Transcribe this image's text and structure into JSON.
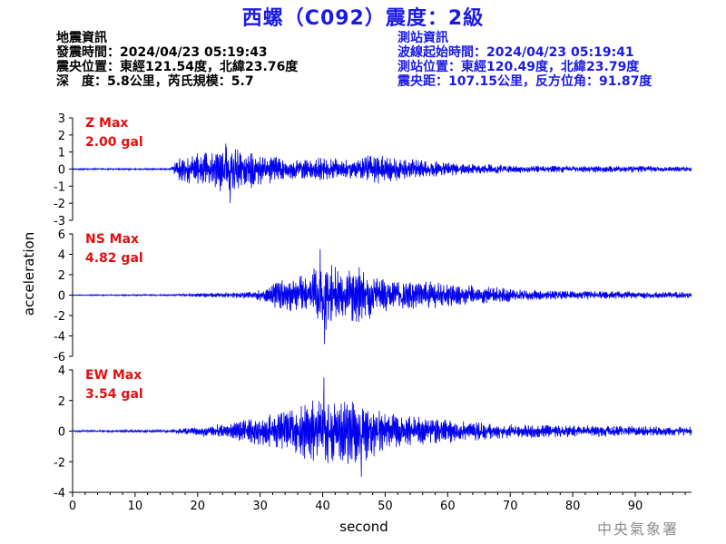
{
  "header": {
    "title": "西螺（C092）震度：2級",
    "left_lines": [
      "地震資訊",
      "發震時間：2024/04/23 05:19:43",
      "震央位置：東經121.54度，北緯23.76度",
      "深　度：5.8公里，芮氏規模：5.7"
    ],
    "right_lines": [
      "測站資訊",
      "波線起始時間：2024/04/23 05:19:41",
      "測站位置：東經120.49度，北緯23.79度",
      "震央距：107.15公里，反方位角：91.87度"
    ]
  },
  "footer": {
    "agency": "中央氣象署"
  },
  "colors": {
    "title": "#1a1ae6",
    "trace": "#0000ee",
    "max_label": "#e01010",
    "station_info": "#1a1ae6"
  },
  "chart_data": {
    "type": "line",
    "xlabel": "second",
    "ylabel": "acceleration",
    "xlim": [
      0,
      99
    ],
    "xticks": [
      0,
      10,
      20,
      30,
      40,
      50,
      60,
      70,
      80,
      90
    ],
    "panels": [
      {
        "name": "Z",
        "max_label": "Z Max",
        "max_value": "2.00 gal",
        "ylim": [
          -3,
          3
        ],
        "yticks": [
          -3,
          -2,
          -1,
          0,
          1,
          2,
          3
        ],
        "envelope": [
          [
            0,
            0.05
          ],
          [
            15.5,
            0.05
          ],
          [
            16.5,
            0.6
          ],
          [
            19,
            0.9
          ],
          [
            22,
            1.1
          ],
          [
            25,
            1.5
          ],
          [
            27,
            1.3
          ],
          [
            30,
            1.0
          ],
          [
            35,
            0.6
          ],
          [
            40,
            0.7
          ],
          [
            45,
            0.6
          ],
          [
            48,
            0.9
          ],
          [
            52,
            0.7
          ],
          [
            58,
            0.5
          ],
          [
            62,
            0.35
          ],
          [
            70,
            0.25
          ],
          [
            80,
            0.2
          ],
          [
            90,
            0.2
          ],
          [
            99,
            0.15
          ]
        ],
        "peaks": [
          [
            24.5,
            1.5
          ],
          [
            25.2,
            -2.0
          ]
        ]
      },
      {
        "name": "NS",
        "max_label": "NS Max",
        "max_value": "4.82 gal",
        "ylim": [
          -6,
          6
        ],
        "yticks": [
          -6,
          -4,
          -2,
          0,
          2,
          4,
          6
        ],
        "envelope": [
          [
            0,
            0.06
          ],
          [
            16,
            0.08
          ],
          [
            20,
            0.2
          ],
          [
            26,
            0.3
          ],
          [
            30,
            0.6
          ],
          [
            33,
            1.8
          ],
          [
            37,
            2.0
          ],
          [
            39,
            3.0
          ],
          [
            40.5,
            3.8
          ],
          [
            43,
            2.2
          ],
          [
            46,
            3.0
          ],
          [
            49,
            1.8
          ],
          [
            55,
            1.5
          ],
          [
            60,
            1.2
          ],
          [
            68,
            0.8
          ],
          [
            75,
            0.5
          ],
          [
            85,
            0.4
          ],
          [
            99,
            0.3
          ]
        ],
        "peaks": [
          [
            39.6,
            4.5
          ],
          [
            40.3,
            -4.8
          ]
        ]
      },
      {
        "name": "EW",
        "max_label": "EW Max",
        "max_value": "3.54 gal",
        "ylim": [
          -4,
          4
        ],
        "yticks": [
          -4,
          -2,
          0,
          2,
          4
        ],
        "envelope": [
          [
            0,
            0.06
          ],
          [
            15,
            0.1
          ],
          [
            20,
            0.3
          ],
          [
            24,
            0.5
          ],
          [
            28,
            0.8
          ],
          [
            32,
            1.2
          ],
          [
            36,
            1.6
          ],
          [
            40,
            2.4
          ],
          [
            44,
            2.2
          ],
          [
            47,
            2.0
          ],
          [
            50,
            1.4
          ],
          [
            55,
            1.0
          ],
          [
            60,
            0.8
          ],
          [
            70,
            0.5
          ],
          [
            80,
            0.4
          ],
          [
            90,
            0.35
          ],
          [
            99,
            0.3
          ]
        ],
        "peaks": [
          [
            40.2,
            3.5
          ],
          [
            46.2,
            -3.0
          ]
        ]
      }
    ]
  }
}
